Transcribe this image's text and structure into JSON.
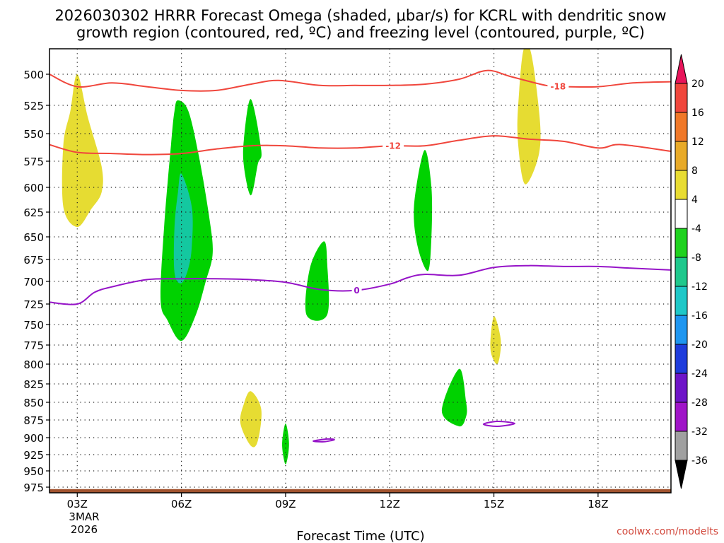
{
  "chart_data": {
    "type": "contour",
    "title_line1": "2026030302 HRRR Forecast Omega (shaded, μbar/s) for KCRL with dendritic snow",
    "title_line2": "growth region (contoured, red, ºC) and freezing level (contoured, purple, ºC)",
    "xlabel": "Forecast Time (UTC)",
    "credit": "coolwx.com/modelts",
    "x_range_hours": [
      2.2,
      20.1
    ],
    "y_levels_hpa": [
      500,
      525,
      550,
      575,
      600,
      625,
      650,
      675,
      700,
      725,
      750,
      775,
      800,
      825,
      850,
      875,
      900,
      925,
      950,
      975
    ],
    "y_labels": [
      "500",
      "525",
      "550",
      "575",
      "600",
      "625",
      "650",
      "675",
      "700",
      "725",
      "750",
      "775",
      "800",
      "825",
      "850",
      "875",
      "900",
      "925",
      "950",
      "975"
    ],
    "y_range_hpa": [
      475,
      987
    ],
    "x_ticks": [
      {
        "hour": 3,
        "label": "03Z"
      },
      {
        "hour": 6,
        "label": "06Z"
      },
      {
        "hour": 9,
        "label": "09Z"
      },
      {
        "hour": 12,
        "label": "12Z"
      },
      {
        "hour": 15,
        "label": "15Z"
      },
      {
        "hour": 18,
        "label": "18Z"
      }
    ],
    "date_label_line1": "3MAR",
    "date_label_line2": "2026",
    "colorbar_labels": [
      "20",
      "16",
      "12",
      "8",
      "4",
      "-4",
      "-8",
      "-12",
      "-16",
      "-20",
      "-24",
      "-28",
      "-32",
      "-36"
    ],
    "colorbar_colors": [
      "#e8145a",
      "#f0463c",
      "#f07828",
      "#e8aa28",
      "#e8dc32",
      "#ffffff",
      "#1ed21e",
      "#1ec88c",
      "#1ec8c8",
      "#1e96f0",
      "#1e3cdc",
      "#6e14c8",
      "#a014c8",
      "#a0a0a0",
      "#000000"
    ],
    "shade_colors": {
      "green": "#00d200",
      "teal": "#14c8a0",
      "yellow": "#e6dc32",
      "terrain": "#a0522d"
    },
    "contours": [
      {
        "name": "dgz-minus-18",
        "color": "#f0463c",
        "label": "-18",
        "label_hour": 16.85,
        "points": [
          [
            2.2,
            500
          ],
          [
            3,
            510
          ],
          [
            4,
            507
          ],
          [
            5,
            510
          ],
          [
            6,
            513
          ],
          [
            7,
            513
          ],
          [
            8,
            508
          ],
          [
            8.8,
            505
          ],
          [
            10,
            509
          ],
          [
            11,
            509
          ],
          [
            12,
            509
          ],
          [
            13,
            508
          ],
          [
            14,
            504
          ],
          [
            14.8,
            497
          ],
          [
            15.5,
            502
          ],
          [
            16.5,
            509
          ],
          [
            17,
            510
          ],
          [
            18,
            510
          ],
          [
            19,
            507
          ],
          [
            20.1,
            506
          ]
        ]
      },
      {
        "name": "dgz-minus-12",
        "color": "#f0463c",
        "label": "-12",
        "label_hour": 12.1,
        "points": [
          [
            2.2,
            560
          ],
          [
            3,
            567
          ],
          [
            4,
            568
          ],
          [
            5,
            569
          ],
          [
            6,
            568
          ],
          [
            7,
            564
          ],
          [
            8,
            561
          ],
          [
            9,
            561
          ],
          [
            10,
            563
          ],
          [
            11,
            563
          ],
          [
            12,
            561
          ],
          [
            13,
            561
          ],
          [
            14,
            556
          ],
          [
            15,
            552
          ],
          [
            16,
            555
          ],
          [
            17,
            557
          ],
          [
            18,
            563
          ],
          [
            18.5,
            560
          ],
          [
            19,
            561
          ],
          [
            20.1,
            566
          ]
        ]
      },
      {
        "name": "freezing-level-0",
        "color": "#9614c8",
        "label": "0",
        "label_hour": 11.05,
        "points": [
          [
            2.2,
            723
          ],
          [
            3.0,
            725
          ],
          [
            3.5,
            712
          ],
          [
            4,
            706
          ],
          [
            5,
            698
          ],
          [
            6,
            697
          ],
          [
            7,
            697
          ],
          [
            8,
            698
          ],
          [
            9,
            701
          ],
          [
            10,
            709
          ],
          [
            11,
            710
          ],
          [
            12,
            703
          ],
          [
            12.5,
            696
          ],
          [
            13,
            692
          ],
          [
            14,
            693
          ],
          [
            15,
            684
          ],
          [
            16,
            682
          ],
          [
            17,
            683
          ],
          [
            18,
            683
          ],
          [
            19,
            685
          ],
          [
            20.1,
            687
          ]
        ]
      },
      {
        "name": "freezing-level-loop-a",
        "color": "#9614c8",
        "label": "",
        "points": [
          [
            9.8,
            905
          ],
          [
            10.2,
            902
          ],
          [
            10.4,
            903
          ],
          [
            10.1,
            906
          ],
          [
            9.8,
            905
          ]
        ]
      },
      {
        "name": "freezing-level-loop-b",
        "color": "#9614c8",
        "label": "",
        "points": [
          [
            14.7,
            881
          ],
          [
            15.1,
            877
          ],
          [
            15.6,
            880
          ],
          [
            15.1,
            884
          ],
          [
            14.7,
            881
          ]
        ]
      }
    ],
    "shaded_regions": [
      {
        "name": "yellow-03z",
        "color": "yellow",
        "points": [
          [
            3.0,
            500
          ],
          [
            3.3,
            535
          ],
          [
            3.7,
            580
          ],
          [
            3.7,
            605
          ],
          [
            3.4,
            622
          ],
          [
            3.0,
            640
          ],
          [
            2.6,
            620
          ],
          [
            2.6,
            560
          ],
          [
            2.8,
            530
          ],
          [
            3.0,
            500
          ]
        ]
      },
      {
        "name": "green-06z",
        "color": "green",
        "points": [
          [
            5.9,
            521
          ],
          [
            6.2,
            530
          ],
          [
            6.5,
            570
          ],
          [
            6.8,
            630
          ],
          [
            6.9,
            668
          ],
          [
            6.7,
            700
          ],
          [
            6.4,
            740
          ],
          [
            6.0,
            770
          ],
          [
            5.6,
            745
          ],
          [
            5.4,
            720
          ],
          [
            5.5,
            640
          ],
          [
            5.7,
            560
          ],
          [
            5.8,
            530
          ],
          [
            5.9,
            521
          ]
        ]
      },
      {
        "name": "teal-06z",
        "color": "teal",
        "points": [
          [
            6.0,
            587
          ],
          [
            6.3,
            620
          ],
          [
            6.3,
            660
          ],
          [
            6.2,
            685
          ],
          [
            6.0,
            702
          ],
          [
            5.8,
            690
          ],
          [
            5.8,
            640
          ],
          [
            5.9,
            605
          ],
          [
            6.0,
            587
          ]
        ]
      },
      {
        "name": "green-08z",
        "color": "green",
        "points": [
          [
            8.0,
            520
          ],
          [
            8.3,
            565
          ],
          [
            8.2,
            578
          ],
          [
            8.0,
            608
          ],
          [
            7.8,
            580
          ],
          [
            7.8,
            555
          ],
          [
            8.0,
            520
          ]
        ]
      },
      {
        "name": "green-10z",
        "color": "green",
        "points": [
          [
            10.1,
            655
          ],
          [
            10.2,
            680
          ],
          [
            10.2,
            738
          ],
          [
            9.6,
            738
          ],
          [
            9.7,
            685
          ],
          [
            10.1,
            655
          ]
        ]
      },
      {
        "name": "green-13z",
        "color": "green",
        "points": [
          [
            13.0,
            565
          ],
          [
            13.2,
            600
          ],
          [
            13.2,
            650
          ],
          [
            13.1,
            688
          ],
          [
            12.8,
            660
          ],
          [
            12.7,
            618
          ],
          [
            13.0,
            565
          ]
        ]
      },
      {
        "name": "yellow-16z",
        "color": "yellow",
        "points": [
          [
            16.0,
            478
          ],
          [
            16.3,
            530
          ],
          [
            16.3,
            568
          ],
          [
            15.9,
            597
          ],
          [
            15.7,
            560
          ],
          [
            15.7,
            525
          ],
          [
            15.9,
            478
          ]
        ]
      },
      {
        "name": "yellow-15z",
        "color": "yellow",
        "points": [
          [
            15.0,
            740
          ],
          [
            15.2,
            770
          ],
          [
            15.1,
            800
          ],
          [
            14.9,
            780
          ],
          [
            15.0,
            740
          ]
        ]
      },
      {
        "name": "green-14z",
        "color": "green",
        "points": [
          [
            14.0,
            806
          ],
          [
            14.2,
            850
          ],
          [
            14.2,
            870
          ],
          [
            14.0,
            884
          ],
          [
            13.5,
            862
          ],
          [
            14.0,
            806
          ]
        ]
      },
      {
        "name": "yellow-08z",
        "color": "yellow",
        "points": [
          [
            8.0,
            835
          ],
          [
            8.3,
            860
          ],
          [
            8.2,
            905
          ],
          [
            8.0,
            912
          ],
          [
            7.7,
            880
          ],
          [
            7.8,
            852
          ],
          [
            8.0,
            835
          ]
        ]
      },
      {
        "name": "green-09z",
        "color": "green",
        "points": [
          [
            9.0,
            880
          ],
          [
            9.1,
            910
          ],
          [
            9.0,
            940
          ],
          [
            8.9,
            910
          ],
          [
            9.0,
            880
          ]
        ]
      }
    ]
  }
}
